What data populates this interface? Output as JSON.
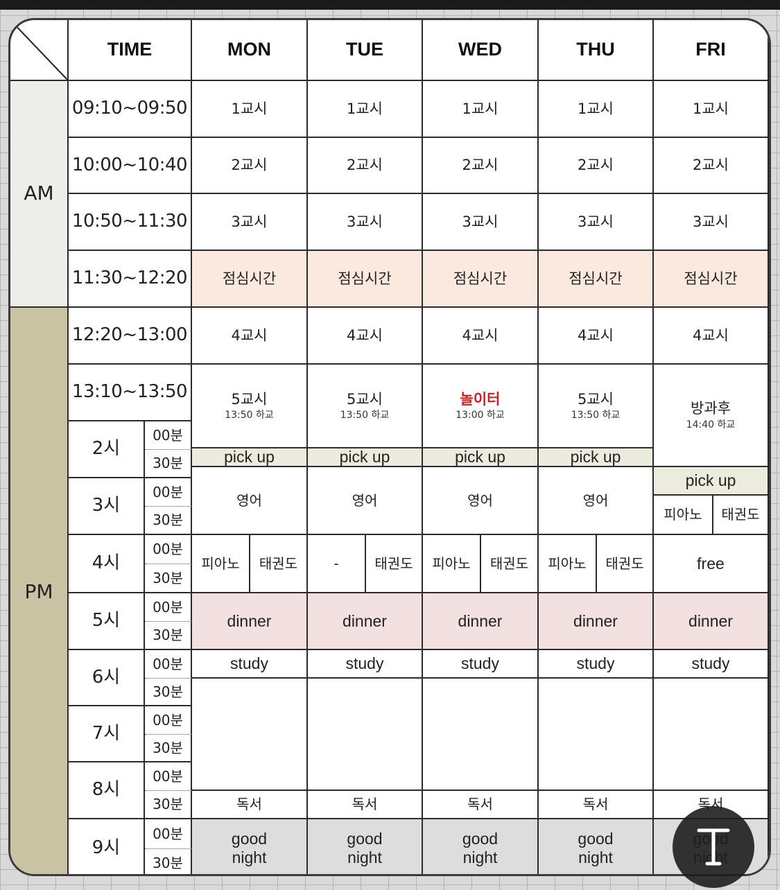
{
  "header": {
    "time": "TIME",
    "days": [
      "MON",
      "TUE",
      "WED",
      "THU",
      "FRI"
    ]
  },
  "sections": {
    "am": "AM",
    "pm": "PM"
  },
  "times": [
    "09:10~09:50",
    "10:00~10:40",
    "10:50~11:30",
    "11:30~12:20",
    "12:20~13:00",
    "13:10~13:50"
  ],
  "periods": {
    "p1": "1교시",
    "p2": "2교시",
    "p3": "3교시",
    "lunch": "점심시간",
    "p4": "4교시"
  },
  "period5": {
    "mon": {
      "title": "5교시",
      "note": "13:50 하교"
    },
    "tue": {
      "title": "5교시",
      "note": "13:50 하교"
    },
    "wed": {
      "title": "놀이터",
      "note": "13:00 하교"
    },
    "thu": {
      "title": "5교시",
      "note": "13:50 하교"
    },
    "fri": {
      "title": "방과후",
      "note": "14:40 하교"
    }
  },
  "hours": [
    "2시",
    "3시",
    "4시",
    "5시",
    "6시",
    "7시",
    "8시",
    "9시"
  ],
  "minutes": {
    "m00": "00분",
    "m30": "30분"
  },
  "activities": {
    "pickup": "pick up",
    "english": "영어",
    "piano": "피아노",
    "taekwondo": "태권도",
    "dash": "-",
    "free": "free",
    "dinner": "dinner",
    "study": "study",
    "reading": "독서",
    "good": "good",
    "night": "night"
  },
  "colors": {
    "lunch": "#fbe9df",
    "pickup": "#ececde",
    "dinner": "#f3e1e2",
    "goodnight": "#dddddd",
    "am_label": "#ededea",
    "pm_label": "#c9c3a3",
    "wed_playground": "#cc2222"
  },
  "overlay": {
    "fab_icon": "text-cursor-icon"
  }
}
